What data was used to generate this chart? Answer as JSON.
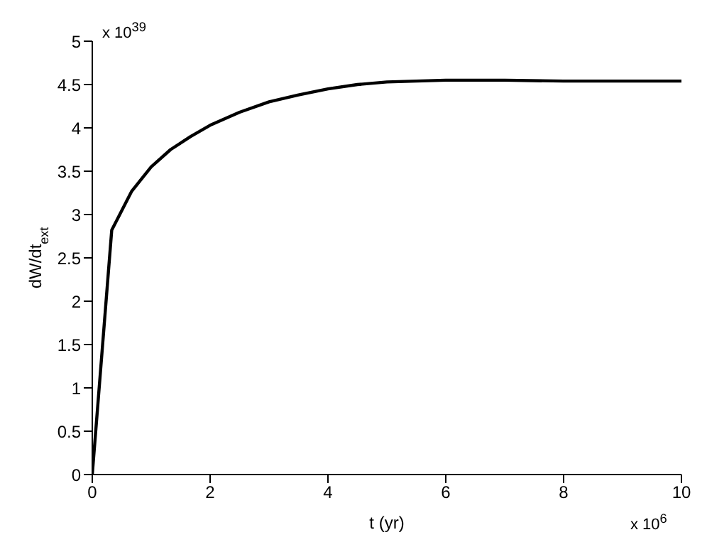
{
  "chart_data": {
    "type": "line",
    "xlabel": "t (yr)",
    "ylabel": "dW/dt$_{ext}$",
    "annotations": [
      "x 10$^{39}$",
      "x 10$^{6}$"
    ],
    "x": [
      0,
      0.33,
      0.67,
      1,
      1.33,
      1.67,
      2,
      2.5,
      3,
      3.5,
      4,
      4.5,
      5,
      6,
      7,
      8,
      9,
      10
    ],
    "series": [
      {
        "color": "#000000",
        "values": [
          0,
          2.82,
          3.27,
          3.55,
          3.75,
          3.9,
          4.03,
          4.18,
          4.3,
          4.38,
          4.45,
          4.5,
          4.53,
          4.55,
          4.55,
          4.54,
          4.54,
          4.54
        ]
      }
    ],
    "xlim": [
      0,
      10
    ],
    "xticks": [
      0,
      2,
      4,
      6,
      8,
      10
    ],
    "ylim": [
      0,
      5
    ],
    "yticks": [
      0,
      0.5,
      1,
      1.5,
      2,
      2.5,
      3,
      3.5,
      4,
      4.5,
      5
    ],
    "grid": false,
    "legend": false,
    "marker": "none",
    "line_style": "solid"
  }
}
